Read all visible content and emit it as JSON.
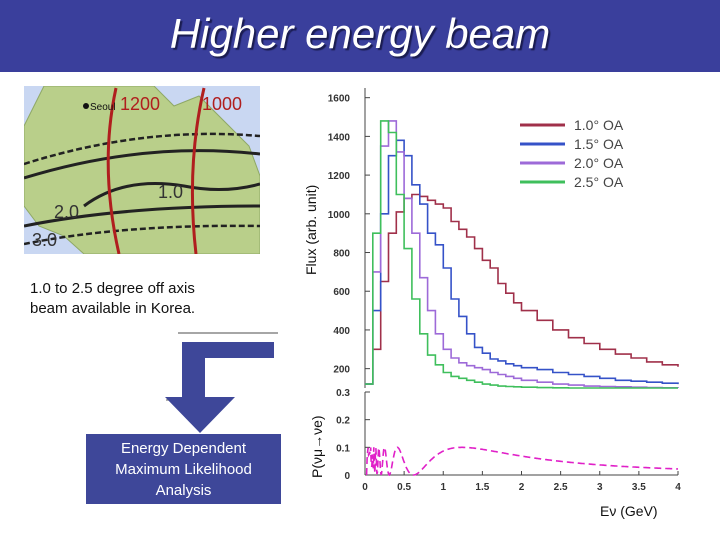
{
  "slide": {
    "title": "Higher energy beam",
    "caption_line1": "1.0 to 2.5 degree off axis",
    "caption_line2": "beam available in Korea.",
    "analysis_line1": "Energy Dependent",
    "analysis_line2": "Maximum Likelihood",
    "analysis_line3": "Analysis"
  },
  "map": {
    "labels": {
      "city": "Seoul",
      "c1": "1200",
      "c2": "1000",
      "oa1": "1.0",
      "oa2": "2.0",
      "oa3": "3.0"
    },
    "colors": {
      "land": "#b9cf8a",
      "sea": "#c9d7f2",
      "curve": "#b01e1e"
    }
  },
  "chart_data": [
    {
      "type": "line",
      "title": "",
      "ylabel": "Flux (arb. unit)",
      "ylim": [
        100,
        1650
      ],
      "yticks": [
        "1600",
        "1400",
        "1200",
        "1000",
        "800",
        "600",
        "400",
        "200"
      ],
      "ytick_values": [
        1600,
        1400,
        1200,
        1000,
        800,
        600,
        400,
        200
      ],
      "xlim": [
        0,
        4
      ],
      "series": [
        {
          "name": "1.0° OA",
          "color": "#a0304a",
          "x": [
            0.0,
            0.1,
            0.2,
            0.3,
            0.4,
            0.5,
            0.6,
            0.7,
            0.8,
            0.9,
            1.0,
            1.1,
            1.2,
            1.3,
            1.4,
            1.5,
            1.6,
            1.7,
            1.8,
            1.9,
            2.0,
            2.2,
            2.4,
            2.6,
            2.8,
            3.0,
            3.2,
            3.4,
            3.6,
            3.8,
            4.0
          ],
          "y": [
            120,
            300,
            650,
            900,
            1010,
            1080,
            1100,
            1090,
            1070,
            1050,
            1030,
            960,
            920,
            880,
            820,
            760,
            720,
            640,
            590,
            540,
            500,
            450,
            400,
            360,
            330,
            300,
            275,
            255,
            235,
            220,
            210
          ]
        },
        {
          "name": "1.5° OA",
          "color": "#3552c8",
          "x": [
            0.0,
            0.1,
            0.2,
            0.3,
            0.4,
            0.5,
            0.6,
            0.7,
            0.8,
            0.9,
            1.0,
            1.1,
            1.2,
            1.3,
            1.4,
            1.5,
            1.6,
            1.7,
            1.8,
            1.9,
            2.0,
            2.2,
            2.4,
            2.6,
            2.8,
            3.0,
            3.2,
            3.4,
            3.6,
            3.8,
            4.0
          ],
          "y": [
            120,
            500,
            1000,
            1300,
            1380,
            1300,
            1150,
            1050,
            900,
            840,
            720,
            560,
            470,
            380,
            310,
            280,
            250,
            240,
            225,
            215,
            205,
            195,
            180,
            170,
            160,
            150,
            140,
            135,
            130,
            125,
            120
          ]
        },
        {
          "name": "2.0° OA",
          "color": "#9d6ad8",
          "x": [
            0.0,
            0.1,
            0.2,
            0.3,
            0.4,
            0.5,
            0.6,
            0.7,
            0.8,
            0.9,
            1.0,
            1.1,
            1.2,
            1.3,
            1.4,
            1.5,
            1.6,
            1.7,
            1.8,
            1.9,
            2.0,
            2.2,
            2.4,
            2.6,
            2.8,
            3.0,
            3.2,
            3.4,
            3.6,
            3.8,
            4.0
          ],
          "y": [
            120,
            700,
            1350,
            1480,
            1320,
            1080,
            900,
            670,
            500,
            380,
            300,
            255,
            230,
            215,
            205,
            195,
            180,
            170,
            160,
            150,
            140,
            130,
            120,
            115,
            110,
            108,
            106,
            104,
            102,
            101,
            100
          ]
        },
        {
          "name": "2.5° OA",
          "color": "#3fbf5c",
          "x": [
            0.0,
            0.1,
            0.2,
            0.3,
            0.4,
            0.5,
            0.6,
            0.7,
            0.8,
            0.9,
            1.0,
            1.1,
            1.2,
            1.3,
            1.4,
            1.5,
            1.6,
            1.7,
            1.8,
            1.9,
            2.0,
            2.2,
            2.4,
            2.6,
            2.8,
            3.0,
            3.2,
            3.4,
            3.6,
            3.8,
            4.0
          ],
          "y": [
            120,
            900,
            1480,
            1420,
            1100,
            820,
            560,
            380,
            270,
            220,
            180,
            160,
            150,
            140,
            130,
            120,
            115,
            110,
            108,
            106,
            104,
            102,
            101,
            100,
            100,
            100,
            100,
            100,
            100,
            100,
            100
          ]
        }
      ]
    },
    {
      "type": "line",
      "title": "",
      "ylabel": "P(νμ→νe)",
      "xlabel": "Eν (GeV)",
      "ylim": [
        0,
        0.3
      ],
      "yticks": [
        "0.3",
        "0.2",
        "0.1",
        "0"
      ],
      "ytick_values": [
        0.3,
        0.2,
        0.1,
        0
      ],
      "xlim": [
        0,
        4
      ],
      "xticks": [
        "0",
        "0.5",
        "1",
        "1.5",
        "2",
        "2.5",
        "3",
        "3.5",
        "4"
      ],
      "xtick_values": [
        0,
        0.5,
        1,
        1.5,
        2,
        2.5,
        3,
        3.5,
        4
      ],
      "series": [
        {
          "name": "oscillation probability",
          "color": "#e020c8",
          "amplitude": 0.1,
          "dm_factor": 0.62
        }
      ]
    }
  ]
}
